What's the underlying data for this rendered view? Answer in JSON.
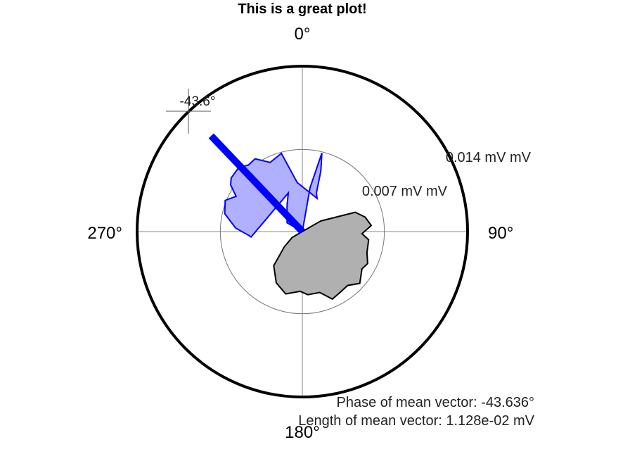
{
  "chart_data": {
    "type": "polar-area",
    "title": "This is a great plot!",
    "angle_direction": "clockwise",
    "zero_direction": "top",
    "angle_ticks": [
      {
        "angle": 0,
        "label": "0°"
      },
      {
        "angle": 90,
        "label": "90°"
      },
      {
        "angle": 180,
        "label": "180°"
      },
      {
        "angle": 270,
        "label": "270°"
      }
    ],
    "radius_max": 0.0141,
    "radial_rings": [
      {
        "value": 0.007,
        "label": "0.007 mV mV"
      },
      {
        "value": 0.014,
        "label": "0.014 mV mV"
      }
    ],
    "grid": true,
    "series": [
      {
        "color": "#0000ff",
        "fill": "#b0b0ff",
        "points": [
          {
            "angle": 2,
            "r": 0
          },
          {
            "angle": 10,
            "r": 0.0038
          },
          {
            "angle": 14,
            "r": 0.0069
          },
          {
            "angle": 17,
            "r": 0.0054
          },
          {
            "angle": 20,
            "r": 0.0035
          },
          {
            "angle": 24,
            "r": 0.0031
          },
          {
            "angle": 354,
            "r": 0.0042
          },
          {
            "angle": 345,
            "r": 0.0069
          },
          {
            "angle": 335,
            "r": 0.0065
          },
          {
            "angle": 327,
            "r": 0.0074
          },
          {
            "angle": 321,
            "r": 0.0073
          },
          {
            "angle": 315,
            "r": 0.0077
          },
          {
            "angle": 307,
            "r": 0.0076
          },
          {
            "angle": 303,
            "r": 0.0073
          },
          {
            "angle": 298,
            "r": 0.0064
          },
          {
            "angle": 292,
            "r": 0.0071
          },
          {
            "angle": 283,
            "r": 0.0068
          },
          {
            "angle": 273,
            "r": 0.0057
          },
          {
            "angle": 266,
            "r": 0.0046
          },
          {
            "angle": 264,
            "r": 0.0044
          },
          {
            "angle": 340,
            "r": 0.0035
          },
          {
            "angle": 330,
            "r": 0.0026
          },
          {
            "angle": 300,
            "r": 0.0015
          }
        ]
      },
      {
        "color": "#000000",
        "fill": "#b0b0b0",
        "points": [
          {
            "angle": 60,
            "r": 0.0018
          },
          {
            "angle": 70,
            "r": 0.0048
          },
          {
            "angle": 77,
            "r": 0.0055
          },
          {
            "angle": 85,
            "r": 0.0059
          },
          {
            "angle": 92,
            "r": 0.0051
          },
          {
            "angle": 97,
            "r": 0.0057
          },
          {
            "angle": 108,
            "r": 0.0058
          },
          {
            "angle": 116,
            "r": 0.0062
          },
          {
            "angle": 122,
            "r": 0.006
          },
          {
            "angle": 132,
            "r": 0.0066
          },
          {
            "angle": 140,
            "r": 0.006
          },
          {
            "angle": 148,
            "r": 0.0061
          },
          {
            "angle": 156,
            "r": 0.0063
          },
          {
            "angle": 164,
            "r": 0.0054
          },
          {
            "angle": 175,
            "r": 0.0054
          },
          {
            "angle": 182,
            "r": 0.0051
          },
          {
            "angle": 195,
            "r": 0.0055
          },
          {
            "angle": 207,
            "r": 0.0049
          },
          {
            "angle": 220,
            "r": 0.0038
          },
          {
            "angle": 230,
            "r": 0.002
          },
          {
            "angle": 240,
            "r": 0.001
          }
        ]
      }
    ],
    "mean_vector": {
      "angle": -43.636,
      "length": 0.01128,
      "color": "#0000ff",
      "marker_label": "-43.6°"
    },
    "annotations": [
      "Phase of mean vector: -43.636°",
      "Length of mean vector: 1.128e-02 mV"
    ]
  }
}
